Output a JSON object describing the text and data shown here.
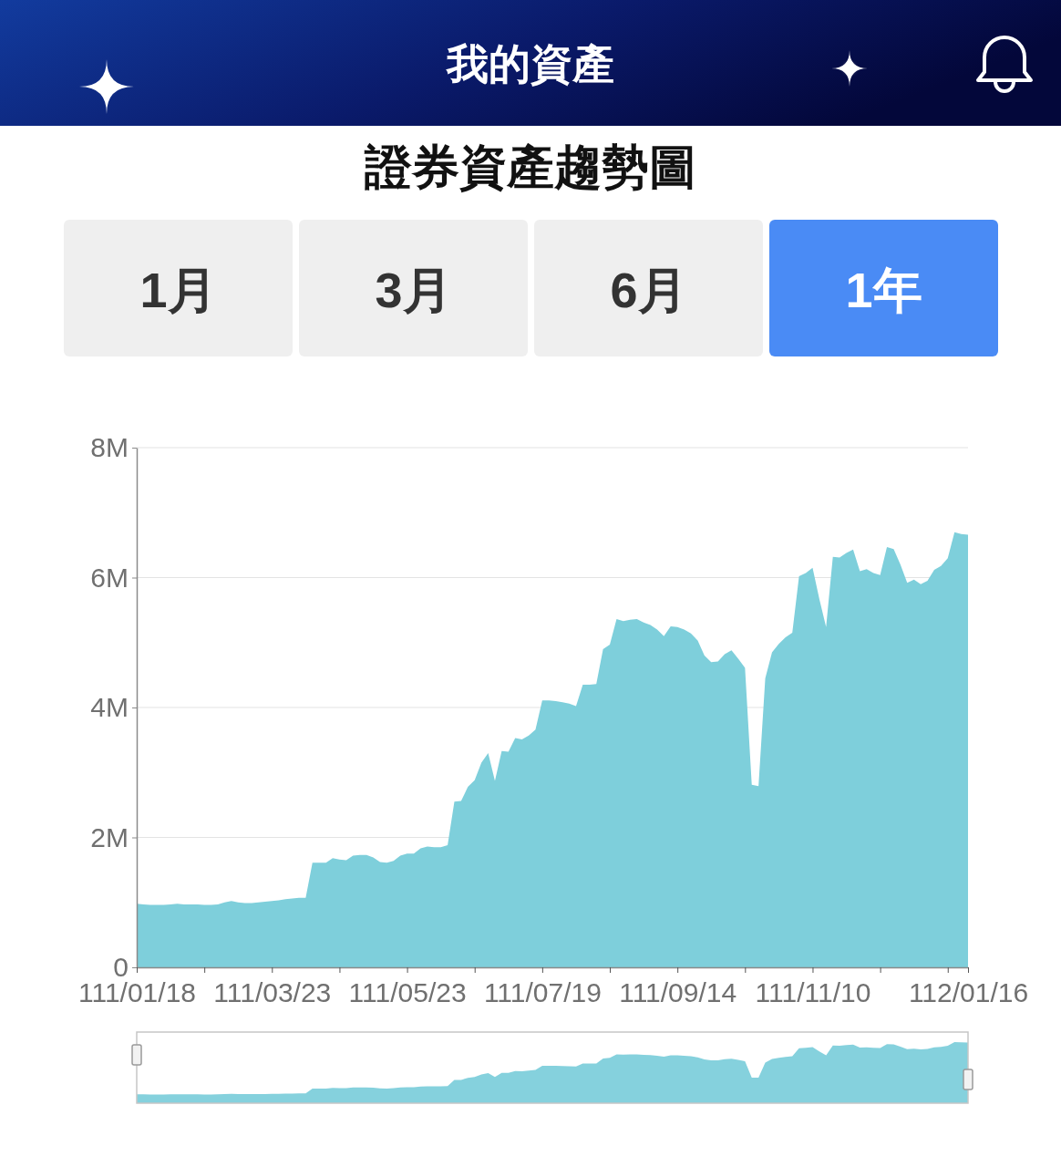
{
  "chart_data": {
    "type": "area",
    "title": "證券資產趨勢圖",
    "annotations": [
      "我的資產",
      "1月",
      "3月",
      "6月",
      "1年"
    ],
    "categories": [
      "111/01/18",
      null,
      null,
      null,
      null,
      null,
      null,
      null,
      null,
      null,
      null,
      null,
      null,
      null,
      null,
      null,
      null,
      null,
      null,
      null,
      "111/03/23",
      null,
      null,
      null,
      null,
      null,
      null,
      null,
      null,
      null,
      null,
      null,
      null,
      null,
      null,
      null,
      null,
      null,
      null,
      null,
      "111/05/23",
      null,
      null,
      null,
      null,
      null,
      null,
      null,
      null,
      null,
      null,
      null,
      null,
      null,
      null,
      null,
      null,
      null,
      null,
      null,
      "111/07/19",
      null,
      null,
      null,
      null,
      null,
      null,
      null,
      null,
      null,
      null,
      null,
      null,
      null,
      null,
      null,
      null,
      null,
      null,
      null,
      "111/09/14",
      null,
      null,
      null,
      null,
      null,
      null,
      null,
      null,
      null,
      null,
      null,
      null,
      null,
      null,
      null,
      null,
      null,
      null,
      null,
      "111/11/10",
      null,
      null,
      null,
      null,
      null,
      null,
      null,
      null,
      null,
      null,
      null,
      null,
      null,
      null,
      null,
      null,
      null,
      null,
      null,
      null,
      null,
      null,
      "112/01/16"
    ],
    "values": [
      980000,
      970000,
      960000,
      960000,
      960000,
      970000,
      980000,
      970000,
      970000,
      970000,
      960000,
      960000,
      970000,
      1000000,
      1020000,
      1000000,
      990000,
      990000,
      1000000,
      1010000,
      1020000,
      1030000,
      1050000,
      1060000,
      1070000,
      1070000,
      1610000,
      1610000,
      1610000,
      1680000,
      1660000,
      1650000,
      1720000,
      1730000,
      1730000,
      1690000,
      1620000,
      1610000,
      1640000,
      1720000,
      1750000,
      1750000,
      1830000,
      1860000,
      1850000,
      1850000,
      1880000,
      2550000,
      2560000,
      2780000,
      2880000,
      3150000,
      3300000,
      2870000,
      3330000,
      3320000,
      3530000,
      3510000,
      3570000,
      3660000,
      4110000,
      4110000,
      4100000,
      4080000,
      4060000,
      4020000,
      4350000,
      4350000,
      4360000,
      4900000,
      4970000,
      5360000,
      5330000,
      5350000,
      5360000,
      5310000,
      5270000,
      5200000,
      5100000,
      5250000,
      5240000,
      5200000,
      5140000,
      5030000,
      4800000,
      4700000,
      4710000,
      4820000,
      4880000,
      4750000,
      4610000,
      2810000,
      2790000,
      4450000,
      4850000,
      4980000,
      5080000,
      5150000,
      6020000,
      6070000,
      6150000,
      5670000,
      5240000,
      6320000,
      6310000,
      6380000,
      6430000,
      6100000,
      6130000,
      6070000,
      6040000,
      6470000,
      6440000,
      6200000,
      5920000,
      5970000,
      5900000,
      5950000,
      6120000,
      6180000,
      6300000,
      6700000,
      6670000,
      6660000
    ],
    "color": "#7ecfdb",
    "ylim": [
      0,
      8000000
    ],
    "yticks": [
      0,
      {
        "value": 2000000,
        "label": "2M"
      },
      {
        "value": 4000000,
        "label": "4M"
      },
      {
        "value": 6000000,
        "label": "6M"
      },
      {
        "value": 8000000,
        "label": "8M"
      }
    ],
    "grid": "y"
  }
}
